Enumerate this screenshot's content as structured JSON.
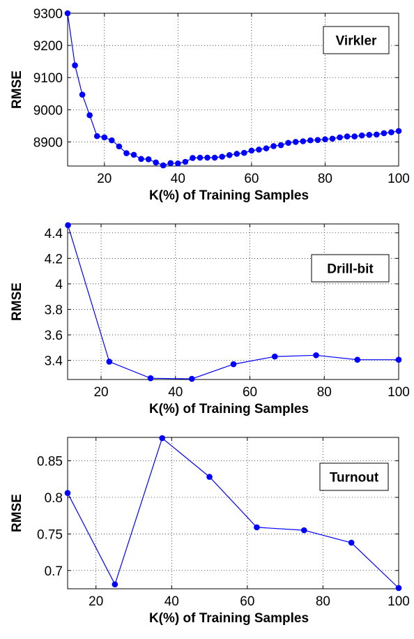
{
  "chart_data": [
    {
      "type": "line",
      "title": "",
      "legend": "Virkler",
      "legend_position": "top-right",
      "grid": true,
      "xlabel": "K(%) of Training Samples",
      "ylabel": "RMSE",
      "xlim": [
        10,
        100
      ],
      "ylim": [
        8825,
        9300
      ],
      "xticks": [
        20,
        40,
        60,
        80,
        100
      ],
      "yticks": [
        8900,
        9000,
        9100,
        9200,
        9300
      ],
      "x": [
        10,
        12,
        14,
        16,
        18,
        20,
        22,
        24,
        26,
        28,
        30,
        32,
        34,
        36,
        38,
        40,
        42,
        44,
        46,
        48,
        50,
        52,
        54,
        56,
        58,
        60,
        62,
        64,
        66,
        68,
        70,
        72,
        74,
        76,
        78,
        80,
        82,
        84,
        86,
        88,
        90,
        92,
        94,
        96,
        98,
        100
      ],
      "values": [
        9300,
        9138,
        9047,
        8983,
        8918,
        8914,
        8905,
        8886,
        8865,
        8860,
        8847,
        8846,
        8836,
        8827,
        8834,
        8833,
        8838,
        8850,
        8851,
        8851,
        8851,
        8854,
        8859,
        8863,
        8866,
        8873,
        8876,
        8880,
        8887,
        8890,
        8897,
        8900,
        8902,
        8905,
        8906,
        8908,
        8910,
        8914,
        8917,
        8917,
        8920,
        8922,
        8923,
        8927,
        8930,
        8934
      ]
    },
    {
      "type": "line",
      "title": "",
      "legend": "Drill-bit",
      "legend_position": "top-right",
      "grid": true,
      "xlabel": "K(%) of Training Samples",
      "ylabel": "RMSE",
      "xlim": [
        11,
        100
      ],
      "ylim": [
        3.25,
        4.47
      ],
      "xticks": [
        20,
        40,
        60,
        80,
        100
      ],
      "yticks": [
        3.4,
        3.6,
        3.8,
        4,
        4.2,
        4.4
      ],
      "yticklabels": [
        "3.4",
        "3.6",
        "3.8",
        "4",
        "4.2",
        "4.4"
      ],
      "x": [
        11.1,
        22.2,
        33.3,
        44.4,
        55.6,
        66.7,
        77.8,
        88.9,
        100
      ],
      "values": [
        4.46,
        3.39,
        3.26,
        3.255,
        3.37,
        3.43,
        3.44,
        3.405,
        3.405
      ]
    },
    {
      "type": "line",
      "title": "",
      "legend": "Turnout",
      "legend_position": "top-right",
      "grid": true,
      "xlabel": "K(%) of Training Samples",
      "ylabel": "RMSE",
      "xlim": [
        12.5,
        100
      ],
      "ylim": [
        0.675,
        0.882
      ],
      "xticks": [
        20,
        40,
        60,
        80,
        100
      ],
      "yticks": [
        0.7,
        0.75,
        0.8,
        0.85
      ],
      "yticklabels": [
        "0.7",
        "0.75",
        "0.8",
        "0.85"
      ],
      "x": [
        12.5,
        25,
        37.5,
        50,
        62.5,
        75,
        87.5,
        100
      ],
      "values": [
        0.806,
        0.681,
        0.881,
        0.828,
        0.759,
        0.755,
        0.738,
        0.676
      ]
    }
  ],
  "colors": {
    "series": "#0000ff",
    "axes": "#000000",
    "grid": "#000000"
  }
}
